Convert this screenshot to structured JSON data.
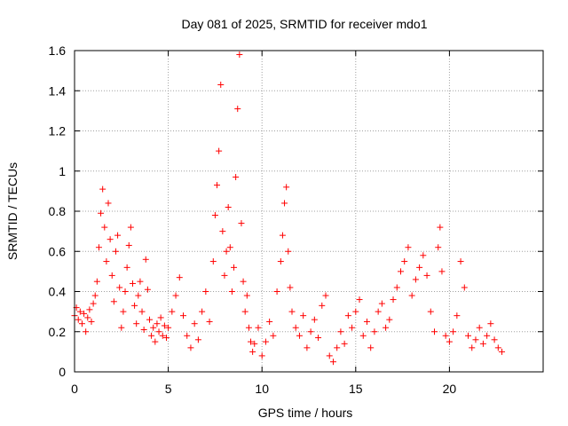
{
  "chart_data": {
    "type": "scatter",
    "title": "Day 081 of 2025, SRMTID for receiver mdo1",
    "xlabel": "GPS time / hours",
    "ylabel": "SRMTID / TECUs",
    "xlim": [
      0,
      25
    ],
    "ylim": [
      0,
      1.6
    ],
    "grid": true,
    "marker": "plus",
    "color": "#ff0000",
    "x_ticks": [
      0,
      5,
      10,
      15,
      20
    ],
    "x_tick_labels": [
      "0",
      "5",
      "10",
      "15",
      "20"
    ],
    "y_ticks": [
      0,
      0.2,
      0.4,
      0.6,
      0.8,
      1.0,
      1.2,
      1.4,
      1.6
    ],
    "y_tick_labels": [
      "0",
      "0.2",
      "0.4",
      "0.6",
      "0.8",
      "1",
      "1.2",
      "1.4",
      "1.6"
    ],
    "series": [
      {
        "name": "mdo1",
        "points": [
          [
            0.0,
            0.28
          ],
          [
            0.1,
            0.32
          ],
          [
            0.2,
            0.26
          ],
          [
            0.3,
            0.3
          ],
          [
            0.4,
            0.24
          ],
          [
            0.5,
            0.29
          ],
          [
            0.6,
            0.2
          ],
          [
            0.7,
            0.27
          ],
          [
            0.8,
            0.31
          ],
          [
            0.9,
            0.25
          ],
          [
            1.0,
            0.34
          ],
          [
            1.1,
            0.38
          ],
          [
            1.2,
            0.45
          ],
          [
            1.3,
            0.62
          ],
          [
            1.4,
            0.79
          ],
          [
            1.5,
            0.91
          ],
          [
            1.6,
            0.72
          ],
          [
            1.7,
            0.55
          ],
          [
            1.8,
            0.84
          ],
          [
            1.9,
            0.66
          ],
          [
            2.0,
            0.48
          ],
          [
            2.1,
            0.35
          ],
          [
            2.2,
            0.6
          ],
          [
            2.3,
            0.68
          ],
          [
            2.4,
            0.42
          ],
          [
            2.5,
            0.22
          ],
          [
            2.6,
            0.3
          ],
          [
            2.7,
            0.4
          ],
          [
            2.8,
            0.52
          ],
          [
            2.9,
            0.63
          ],
          [
            3.0,
            0.72
          ],
          [
            3.1,
            0.44
          ],
          [
            3.2,
            0.33
          ],
          [
            3.3,
            0.24
          ],
          [
            3.4,
            0.38
          ],
          [
            3.5,
            0.45
          ],
          [
            3.6,
            0.3
          ],
          [
            3.7,
            0.21
          ],
          [
            3.8,
            0.56
          ],
          [
            3.9,
            0.41
          ],
          [
            4.0,
            0.26
          ],
          [
            4.1,
            0.18
          ],
          [
            4.2,
            0.22
          ],
          [
            4.3,
            0.15
          ],
          [
            4.4,
            0.24
          ],
          [
            4.5,
            0.2
          ],
          [
            4.6,
            0.27
          ],
          [
            4.7,
            0.18
          ],
          [
            4.8,
            0.23
          ],
          [
            4.9,
            0.17
          ],
          [
            5.0,
            0.22
          ],
          [
            5.2,
            0.3
          ],
          [
            5.4,
            0.38
          ],
          [
            5.6,
            0.47
          ],
          [
            5.8,
            0.28
          ],
          [
            6.0,
            0.18
          ],
          [
            6.2,
            0.12
          ],
          [
            6.4,
            0.24
          ],
          [
            6.6,
            0.16
          ],
          [
            6.8,
            0.3
          ],
          [
            7.0,
            0.4
          ],
          [
            7.2,
            0.25
          ],
          [
            7.4,
            0.55
          ],
          [
            7.5,
            0.78
          ],
          [
            7.6,
            0.93
          ],
          [
            7.7,
            1.1
          ],
          [
            7.8,
            1.43
          ],
          [
            7.9,
            0.7
          ],
          [
            8.0,
            0.48
          ],
          [
            8.1,
            0.6
          ],
          [
            8.2,
            0.82
          ],
          [
            8.3,
            0.62
          ],
          [
            8.4,
            0.4
          ],
          [
            8.5,
            0.52
          ],
          [
            8.6,
            0.97
          ],
          [
            8.7,
            1.31
          ],
          [
            8.8,
            1.58
          ],
          [
            8.9,
            0.74
          ],
          [
            9.0,
            0.45
          ],
          [
            9.1,
            0.3
          ],
          [
            9.2,
            0.38
          ],
          [
            9.3,
            0.22
          ],
          [
            9.4,
            0.15
          ],
          [
            9.5,
            0.1
          ],
          [
            9.6,
            0.14
          ],
          [
            9.8,
            0.22
          ],
          [
            10.0,
            0.08
          ],
          [
            10.2,
            0.15
          ],
          [
            10.4,
            0.25
          ],
          [
            10.6,
            0.18
          ],
          [
            10.8,
            0.4
          ],
          [
            11.0,
            0.55
          ],
          [
            11.1,
            0.68
          ],
          [
            11.2,
            0.84
          ],
          [
            11.3,
            0.92
          ],
          [
            11.4,
            0.6
          ],
          [
            11.5,
            0.42
          ],
          [
            11.6,
            0.3
          ],
          [
            11.8,
            0.22
          ],
          [
            12.0,
            0.18
          ],
          [
            12.2,
            0.28
          ],
          [
            12.4,
            0.12
          ],
          [
            12.6,
            0.2
          ],
          [
            12.8,
            0.26
          ],
          [
            13.0,
            0.17
          ],
          [
            13.2,
            0.33
          ],
          [
            13.4,
            0.38
          ],
          [
            13.6,
            0.08
          ],
          [
            13.8,
            0.05
          ],
          [
            14.0,
            0.12
          ],
          [
            14.2,
            0.2
          ],
          [
            14.4,
            0.14
          ],
          [
            14.6,
            0.28
          ],
          [
            14.8,
            0.22
          ],
          [
            15.0,
            0.3
          ],
          [
            15.2,
            0.36
          ],
          [
            15.4,
            0.18
          ],
          [
            15.6,
            0.25
          ],
          [
            15.8,
            0.12
          ],
          [
            16.0,
            0.2
          ],
          [
            16.2,
            0.3
          ],
          [
            16.4,
            0.34
          ],
          [
            16.6,
            0.22
          ],
          [
            16.8,
            0.26
          ],
          [
            17.0,
            0.36
          ],
          [
            17.2,
            0.42
          ],
          [
            17.4,
            0.5
          ],
          [
            17.6,
            0.55
          ],
          [
            17.8,
            0.62
          ],
          [
            18.0,
            0.38
          ],
          [
            18.2,
            0.46
          ],
          [
            18.4,
            0.52
          ],
          [
            18.6,
            0.58
          ],
          [
            18.8,
            0.48
          ],
          [
            19.0,
            0.3
          ],
          [
            19.2,
            0.2
          ],
          [
            19.4,
            0.62
          ],
          [
            19.5,
            0.72
          ],
          [
            19.6,
            0.5
          ],
          [
            19.8,
            0.18
          ],
          [
            20.0,
            0.15
          ],
          [
            20.2,
            0.2
          ],
          [
            20.4,
            0.28
          ],
          [
            20.6,
            0.55
          ],
          [
            20.8,
            0.42
          ],
          [
            21.0,
            0.18
          ],
          [
            21.2,
            0.12
          ],
          [
            21.4,
            0.16
          ],
          [
            21.6,
            0.22
          ],
          [
            21.8,
            0.14
          ],
          [
            22.0,
            0.18
          ],
          [
            22.2,
            0.24
          ],
          [
            22.4,
            0.16
          ],
          [
            22.6,
            0.12
          ],
          [
            22.8,
            0.1
          ]
        ]
      }
    ]
  }
}
